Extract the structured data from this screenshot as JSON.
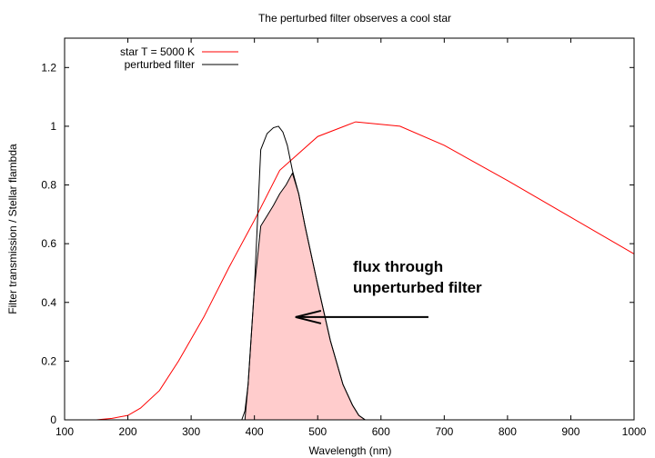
{
  "chart_data": {
    "type": "line",
    "title": "The perturbed filter observes a cool star",
    "xlabel": "Wavelength (nm)",
    "ylabel": "Filter transmission / Stellar flambda",
    "xlim": [
      100,
      1000
    ],
    "ylim": [
      0,
      1.3
    ],
    "x_ticks": [
      100,
      200,
      300,
      400,
      500,
      600,
      700,
      800,
      900,
      1000
    ],
    "x_tick_labels": [
      "100",
      "200",
      "300",
      "400",
      "500",
      "600",
      "700",
      "800",
      "900",
      "1000"
    ],
    "y_ticks": [
      0,
      0.2,
      0.4,
      0.6,
      0.8,
      1.0,
      1.2
    ],
    "y_tick_labels": [
      "0",
      "0.2",
      "0.4",
      "0.6",
      "0.8",
      "1",
      "1.2"
    ],
    "legend_position": "top-left",
    "grid": false,
    "series": [
      {
        "name": "star T = 5000 K",
        "color": "#ff0000",
        "x": [
          100,
          150,
          175,
          200,
          220,
          250,
          280,
          320,
          360,
          400,
          440,
          500,
          560,
          630,
          700,
          800,
          900,
          1000
        ],
        "y": [
          0,
          0,
          0.005,
          0.015,
          0.04,
          0.1,
          0.2,
          0.35,
          0.52,
          0.68,
          0.85,
          0.965,
          1.015,
          1.0,
          0.935,
          0.815,
          0.69,
          0.565
        ]
      },
      {
        "name": "perturbed filter",
        "color": "#000000",
        "x": [
          370,
          380,
          385,
          390,
          400,
          410,
          420,
          430,
          438,
          445,
          452,
          460,
          470,
          480,
          500,
          520,
          540,
          555,
          565,
          575
        ],
        "y": [
          0,
          0,
          0.03,
          0.12,
          0.45,
          0.92,
          0.975,
          0.995,
          1.0,
          0.98,
          0.935,
          0.85,
          0.77,
          0.66,
          0.46,
          0.27,
          0.12,
          0.05,
          0.015,
          0
        ]
      }
    ],
    "shaded_region": {
      "color": "#ffcccc",
      "description_series": "unperturbed filter",
      "x": [
        385,
        390,
        400,
        410,
        420,
        430,
        440,
        450,
        460,
        470,
        480,
        500,
        520,
        540,
        555,
        565,
        575
      ],
      "y": [
        0,
        0.12,
        0.45,
        0.66,
        0.695,
        0.73,
        0.77,
        0.8,
        0.84,
        0.77,
        0.66,
        0.46,
        0.27,
        0.12,
        0.05,
        0.015,
        0
      ]
    },
    "annotation": {
      "lines": [
        "flux through",
        "unperturbed filter"
      ],
      "arrow_from": [
        675,
        0.35
      ],
      "arrow_to": [
        465,
        0.35
      ]
    }
  }
}
